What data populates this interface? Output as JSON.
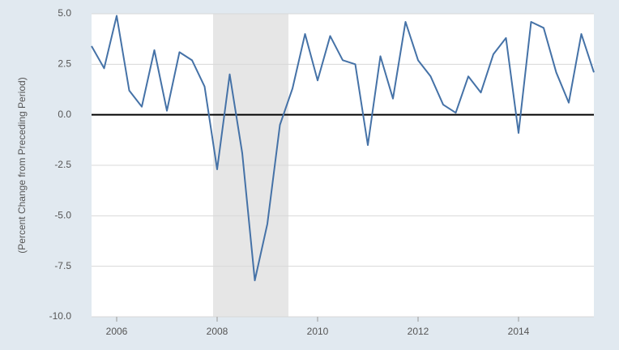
{
  "chart_data": {
    "type": "line",
    "y_label": "(Percent Change from Preceding Period)",
    "x": [
      2005.5,
      2005.75,
      2006.0,
      2006.25,
      2006.5,
      2006.75,
      2007.0,
      2007.25,
      2007.5,
      2007.75,
      2008.0,
      2008.25,
      2008.5,
      2008.75,
      2009.0,
      2009.25,
      2009.5,
      2009.75,
      2010.0,
      2010.25,
      2010.5,
      2010.75,
      2011.0,
      2011.25,
      2011.5,
      2011.75,
      2012.0,
      2012.25,
      2012.5,
      2012.75,
      2013.0,
      2013.25,
      2013.5,
      2013.75,
      2014.0,
      2014.25,
      2014.5,
      2014.75,
      2015.0,
      2015.25,
      2015.5
    ],
    "values": [
      3.4,
      2.3,
      4.9,
      1.2,
      0.4,
      3.2,
      0.2,
      3.1,
      2.7,
      1.4,
      -2.7,
      2.0,
      -1.9,
      -8.2,
      -5.4,
      -0.5,
      1.3,
      4.0,
      1.7,
      3.9,
      2.7,
      2.5,
      -1.5,
      2.9,
      0.8,
      4.6,
      2.7,
      1.9,
      0.5,
      0.1,
      1.9,
      1.1,
      3.0,
      3.8,
      -0.9,
      4.6,
      4.3,
      2.1,
      0.6,
      4.0,
      2.1
    ],
    "color": "#4572a7",
    "shaded_ranges": [
      [
        2007.92,
        2009.42
      ]
    ],
    "shade_color": "#e6e6e6",
    "xlim": [
      2005.5,
      2015.5
    ],
    "xticks": [
      2006,
      2008,
      2010,
      2012,
      2014
    ],
    "ylim": [
      -10,
      5
    ],
    "yticks": [
      {
        "value": 5,
        "label": "5.0"
      },
      2.5,
      {
        "value": 0,
        "label": "0.0"
      },
      -2.5,
      {
        "value": -5,
        "label": "-5.0"
      },
      -7.5,
      {
        "value": -10,
        "label": "-10.0"
      }
    ],
    "grid": true,
    "zero_line": true
  }
}
